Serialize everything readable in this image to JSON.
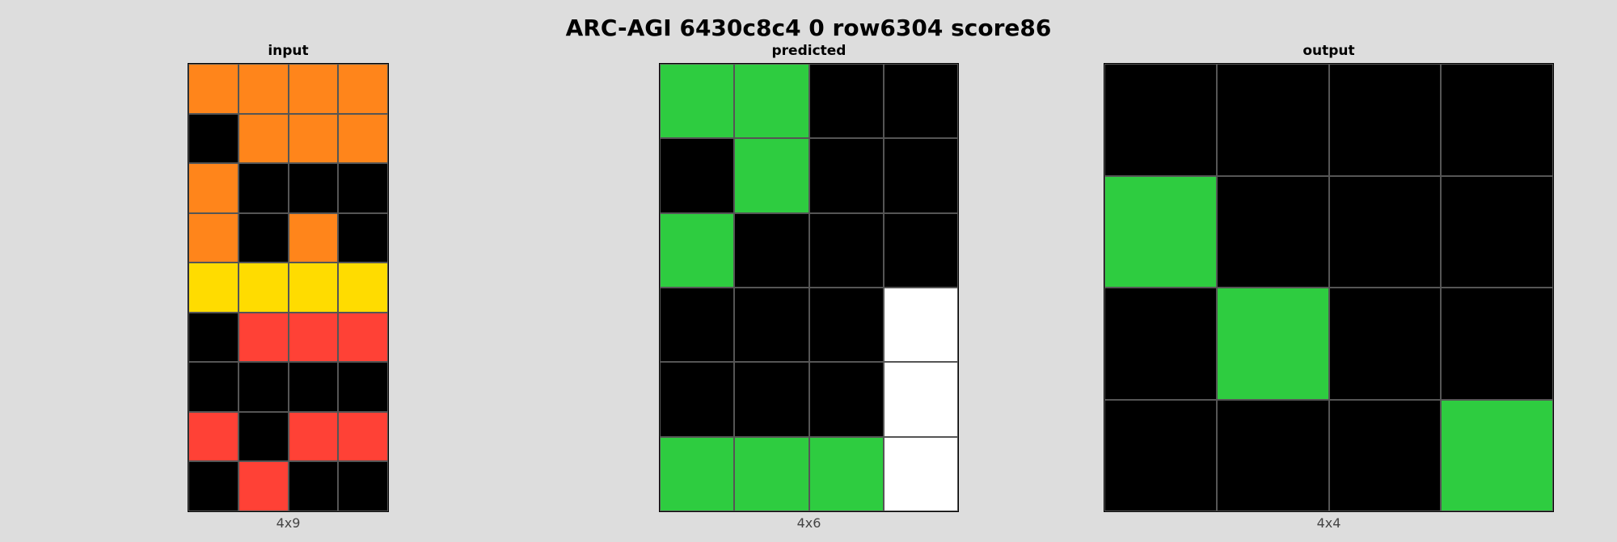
{
  "title": "ARC-AGI 6430c8c4 0 row6304 score86",
  "palette": {
    "0": "#000000",
    "2": "#ff4136",
    "3": "#2ecc40",
    "4": "#ffdc00",
    "5": "#ffffff",
    "7": "#ff851b"
  },
  "panels": {
    "input": {
      "label": "input",
      "dims": "4x9",
      "rows": [
        [
          7,
          7,
          7,
          7
        ],
        [
          0,
          7,
          7,
          7
        ],
        [
          7,
          0,
          0,
          0
        ],
        [
          7,
          0,
          7,
          0
        ],
        [
          4,
          4,
          4,
          4
        ],
        [
          0,
          2,
          2,
          2
        ],
        [
          0,
          0,
          0,
          0
        ],
        [
          2,
          0,
          2,
          2
        ],
        [
          0,
          2,
          0,
          0
        ]
      ]
    },
    "predicted": {
      "label": "predicted",
      "dims": "4x6",
      "rows": [
        [
          3,
          3,
          0,
          0
        ],
        [
          0,
          3,
          0,
          0
        ],
        [
          3,
          0,
          0,
          0
        ],
        [
          0,
          0,
          0,
          5
        ],
        [
          0,
          0,
          0,
          5
        ],
        [
          3,
          3,
          3,
          5
        ]
      ]
    },
    "output": {
      "label": "output",
      "dims": "4x4",
      "rows": [
        [
          0,
          0,
          0,
          0
        ],
        [
          3,
          0,
          0,
          0
        ],
        [
          0,
          3,
          0,
          0
        ],
        [
          0,
          0,
          0,
          3
        ]
      ]
    }
  }
}
